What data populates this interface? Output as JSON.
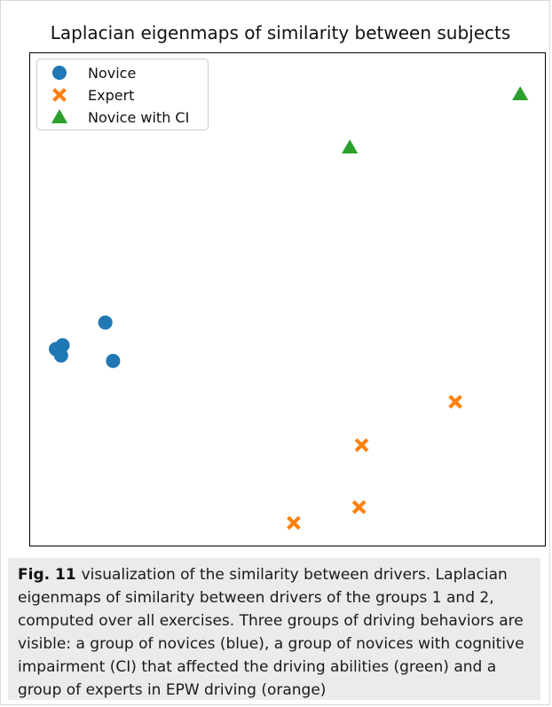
{
  "figure": {
    "caption_label": "Fig. 11",
    "caption_text": "visualization of the similarity between drivers. Laplacian eigenmaps of similarity between drivers of the groups 1 and 2, computed over all exercises. Three groups of driving behaviors are visible: a group of novices (blue), a group of novices with cognitive impairment (CI) that affected the driving abilities (green) and a group of experts in EPW driving (orange)"
  },
  "chart_data": {
    "type": "scatter",
    "title": "Laplacian eigenmaps of similarity between subjects",
    "xlabel": "",
    "ylabel": "",
    "xlim": [
      0,
      100
    ],
    "ylim": [
      0,
      100
    ],
    "grid": false,
    "axis_ticks": false,
    "legend_position": "top-left",
    "series": [
      {
        "name": "Novice",
        "marker": "circle",
        "color": "#1f77b4",
        "points": [
          {
            "x": 14.6,
            "y": 45.3
          },
          {
            "x": 5.0,
            "y": 39.9
          },
          {
            "x": 6.3,
            "y": 40.7
          },
          {
            "x": 6.0,
            "y": 38.6
          },
          {
            "x": 16.1,
            "y": 37.5
          }
        ]
      },
      {
        "name": "Expert",
        "marker": "x",
        "color": "#ff7f0e",
        "points": [
          {
            "x": 82.6,
            "y": 29.2
          },
          {
            "x": 64.4,
            "y": 20.4
          },
          {
            "x": 63.9,
            "y": 7.8
          },
          {
            "x": 51.2,
            "y": 4.6
          }
        ]
      },
      {
        "name": "Novice with CI",
        "marker": "triangle",
        "color": "#2ca02c",
        "points": [
          {
            "x": 95.2,
            "y": 91.7
          },
          {
            "x": 62.1,
            "y": 80.9
          }
        ]
      }
    ]
  }
}
